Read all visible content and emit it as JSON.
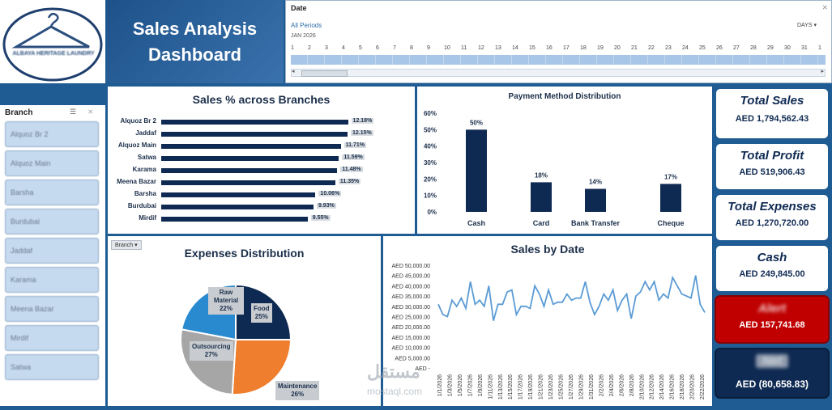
{
  "logo": {
    "text": "ALBAYA HERITAGE LAUNDRY"
  },
  "title": {
    "line1": "Sales Analysis",
    "line2": "Dashboard"
  },
  "timeline": {
    "title": "Date",
    "periods": "All Periods",
    "year": "JAN 2026",
    "unit": "DAYS",
    "days": [
      "1",
      "2",
      "3",
      "4",
      "5",
      "6",
      "7",
      "8",
      "9",
      "10",
      "11",
      "12",
      "13",
      "14",
      "15",
      "16",
      "17",
      "18",
      "19",
      "20",
      "21",
      "22",
      "23",
      "24",
      "25",
      "26",
      "27",
      "28",
      "29",
      "30",
      "31",
      "1"
    ]
  },
  "branch_slicer": {
    "title": "Branch",
    "items": [
      "Alquoz Br 2",
      "Alquoz Main",
      "Barsha",
      "Burdubai",
      "Jaddaf",
      "Karama",
      "Meena Bazar",
      "Mirdif",
      "Satwa"
    ]
  },
  "colors": {
    "navy": "#0f2a52",
    "blue": "#1f5c93",
    "orange": "#ef7f2e",
    "gray": "#a6a6a6",
    "light_blue": "#2a8ad0",
    "red": "#c00000"
  },
  "chart_data": [
    {
      "type": "bar",
      "title": "Sales % across Branches",
      "orientation": "horizontal",
      "categories": [
        "Alquoz Br 2",
        "Jaddaf",
        "Alquoz Main",
        "Satwa",
        "Karama",
        "Meena Bazar",
        "Barsha",
        "Burdubai",
        "Mirdif"
      ],
      "values": [
        12.18,
        12.15,
        11.71,
        11.59,
        11.48,
        11.35,
        10.06,
        9.93,
        9.55
      ],
      "labels": [
        "12.18%",
        "12.15%",
        "11.71%",
        "11.59%",
        "11.48%",
        "11.35%",
        "10.06%",
        "9.93%",
        "9.55%"
      ]
    },
    {
      "type": "bar",
      "title": "Payment Method Distribution",
      "categories": [
        "Cash",
        "Card",
        "Bank Transfer",
        "Cheque"
      ],
      "values": [
        50,
        18,
        14,
        17
      ],
      "labels": [
        "50%",
        "18%",
        "14%",
        "17%"
      ],
      "yticks": [
        "60%",
        "50%",
        "40%",
        "30%",
        "20%",
        "10%",
        "0%"
      ],
      "ylim": [
        0,
        60
      ]
    },
    {
      "type": "pie",
      "title": "Expenses Distribution",
      "filter_label": "Branch",
      "slices": [
        {
          "name": "Food",
          "value": 25,
          "label": "25%",
          "color": "#0f2a52"
        },
        {
          "name": "Maintenance",
          "value": 26,
          "label": "26%",
          "color": "#ef7f2e"
        },
        {
          "name": "Outsourcing",
          "value": 27,
          "label": "27%",
          "color": "#a6a6a6"
        },
        {
          "name": "Raw Material",
          "value": 22,
          "label": "22%",
          "color": "#2a8ad0"
        }
      ]
    },
    {
      "type": "line",
      "title": "Sales by Date",
      "ylim": [
        0,
        50000
      ],
      "yticks": [
        "AED 50,000.00",
        "AED 45,000.00",
        "AED 40,000.00",
        "AED 35,000.00",
        "AED 30,000.00",
        "AED 25,000.00",
        "AED 20,000.00",
        "AED 15,000.00",
        "AED 10,000.00",
        "AED 5,000.00",
        "AED -"
      ],
      "xticks": [
        "1/1/2026",
        "1/3/2026",
        "1/5/2026",
        "1/7/2026",
        "1/9/2026",
        "1/11/2026",
        "1/13/2026",
        "1/15/2026",
        "1/17/2026",
        "1/19/2026",
        "1/21/2026",
        "1/23/2026",
        "1/25/2026",
        "1/27/2026",
        "1/29/2026",
        "1/31/2026",
        "2/2/2026",
        "2/4/2026",
        "2/6/2026",
        "2/8/2026",
        "2/10/2026",
        "2/12/2026",
        "2/14/2026",
        "2/16/2026",
        "2/18/2026",
        "2/20/2026",
        "2/22/2026"
      ],
      "values": [
        31000,
        26000,
        25000,
        33000,
        30000,
        34000,
        29000,
        42000,
        31000,
        33000,
        30000,
        40000,
        23000,
        31000,
        31000,
        37000,
        38000,
        26000,
        30000,
        30000,
        29000,
        40000,
        36000,
        30000,
        38000,
        31000,
        32000,
        32000,
        36000,
        33000,
        34000,
        34000,
        42000,
        32000,
        26000,
        30000,
        36000,
        33000,
        38000,
        28000,
        33000,
        36000,
        24000,
        35000,
        37000,
        42000,
        38000,
        42000,
        33000,
        36000,
        34000,
        44000,
        40000,
        36000,
        35000,
        34000,
        45000,
        31000,
        27000
      ]
    }
  ],
  "kpis": [
    {
      "title": "Total Sales",
      "value": "AED 1,794,562.43"
    },
    {
      "title": "Total Profit",
      "value": "AED 519,906.43"
    },
    {
      "title": "Total Expenses",
      "value": "AED 1,270,720.00"
    },
    {
      "title": "Cash",
      "value": "AED 249,845.00"
    },
    {
      "title": "Alert",
      "value": "AED 157,741.68"
    },
    {
      "title": "Net",
      "value": "AED (80,658.83)"
    }
  ],
  "watermark": {
    "arabic": "مستقل",
    "latin": "mostaql.com"
  }
}
